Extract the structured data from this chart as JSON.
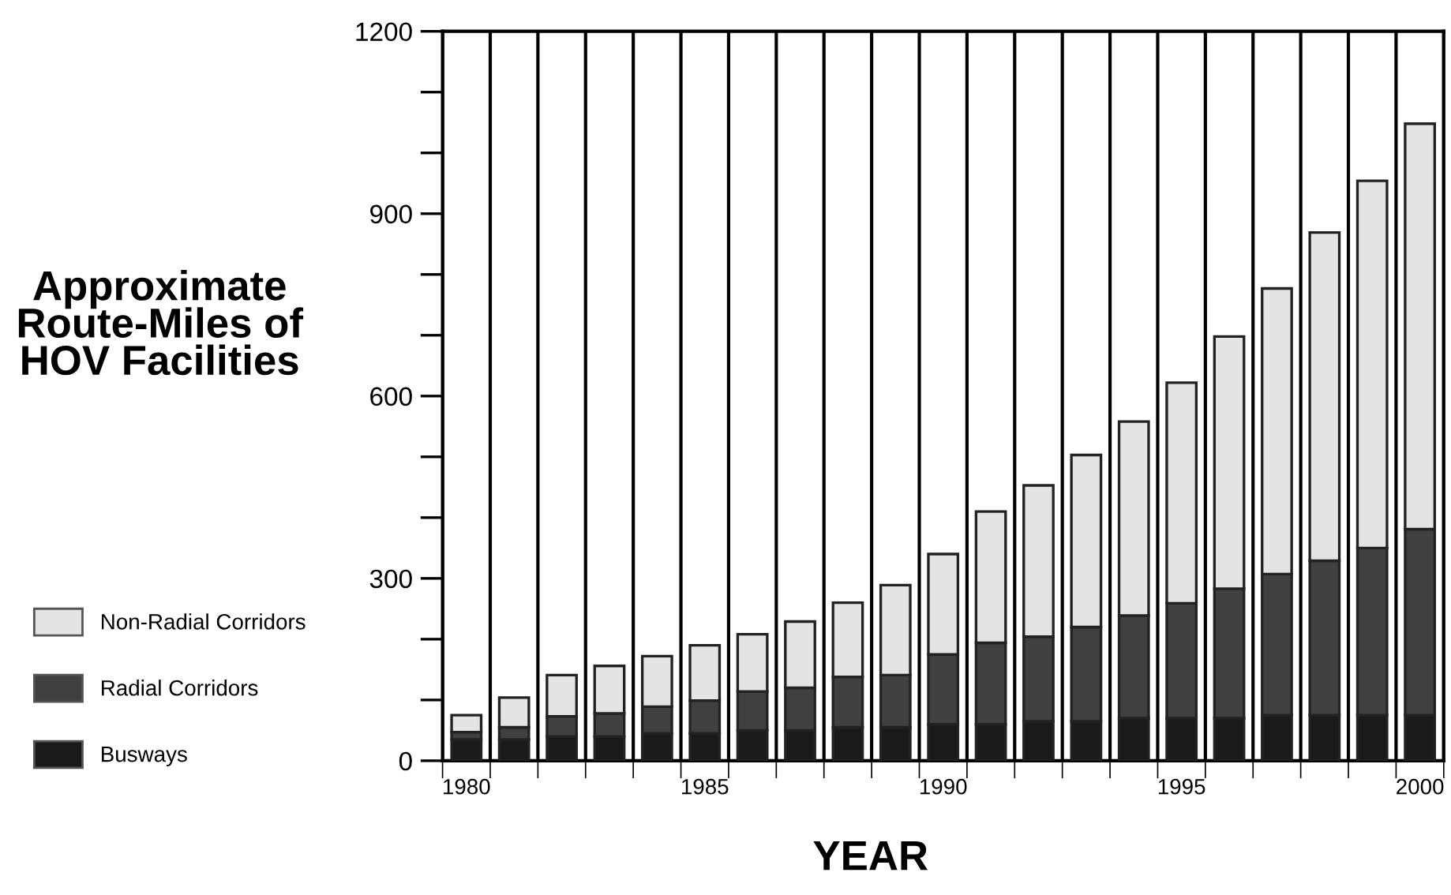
{
  "chart_data": {
    "type": "bar",
    "stacked": true,
    "title": "Approximate Route-Miles of HOV Facilities",
    "xlabel": "YEAR",
    "categories": [
      "1980",
      null,
      null,
      null,
      null,
      "1985",
      null,
      null,
      null,
      null,
      "1990",
      null,
      null,
      null,
      null,
      "1995",
      null,
      null,
      null,
      null,
      "2000"
    ],
    "series": [
      {
        "name": "Busways",
        "color": "#1a1a1a",
        "values": [
          35,
          35,
          40,
          40,
          45,
          45,
          50,
          50,
          55,
          55,
          60,
          60,
          65,
          65,
          70,
          70,
          70,
          75,
          75,
          75,
          75
        ]
      },
      {
        "name": "Radial Corridors",
        "color": "#404040",
        "values": [
          12,
          20,
          33,
          38,
          44,
          54,
          64,
          70,
          83,
          86,
          115,
          134,
          139,
          155,
          169,
          189,
          213,
          232,
          254,
          275,
          306
        ]
      },
      {
        "name": "Non-Radial Corridors",
        "color": "#e4e4e4",
        "values": [
          28,
          49,
          68,
          78,
          83,
          91,
          94,
          109,
          122,
          148,
          165,
          216,
          249,
          283,
          319,
          363,
          415,
          470,
          540,
          604,
          667
        ]
      }
    ],
    "ylim": [
      0,
      1200
    ],
    "yticks": [
      0,
      {
        "value": 100,
        "label": null
      },
      {
        "value": 200,
        "label": null
      },
      300,
      {
        "value": 400,
        "label": null
      },
      {
        "value": 500,
        "label": null
      },
      600,
      {
        "value": 700,
        "label": null
      },
      {
        "value": 800,
        "label": null
      },
      900,
      {
        "value": 1000,
        "label": null
      },
      {
        "value": 1100,
        "label": null
      },
      1200
    ],
    "grid": "x",
    "legend": "left"
  }
}
